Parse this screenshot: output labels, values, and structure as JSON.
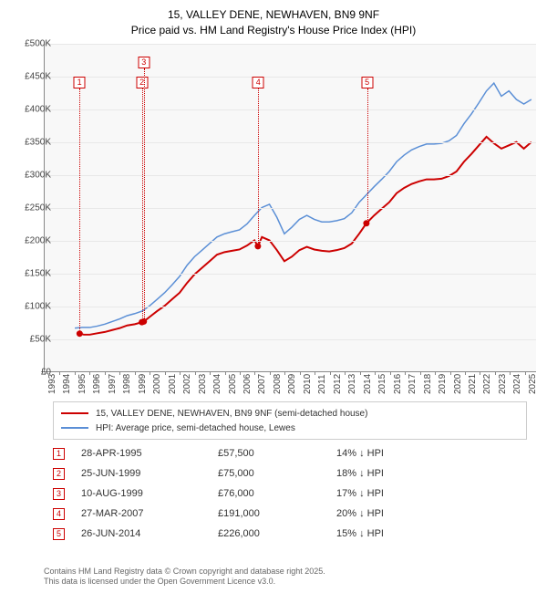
{
  "title": {
    "line1": "15, VALLEY DENE, NEWHAVEN, BN9 9NF",
    "line2": "Price paid vs. HM Land Registry's House Price Index (HPI)"
  },
  "chart": {
    "type": "line",
    "background_color": "#f8f8f8",
    "grid_color": "#e8e8e8",
    "axis_color": "#888888",
    "x_range": [
      1993,
      2025.8
    ],
    "y_range": [
      0,
      500000
    ],
    "y_ticks": [
      0,
      50000,
      100000,
      150000,
      200000,
      250000,
      300000,
      350000,
      400000,
      450000,
      500000
    ],
    "y_tick_labels": [
      "£0",
      "£50K",
      "£100K",
      "£150K",
      "£200K",
      "£250K",
      "£300K",
      "£350K",
      "£400K",
      "£450K",
      "£500K"
    ],
    "x_ticks": [
      1993,
      1994,
      1995,
      1996,
      1997,
      1998,
      1999,
      2000,
      2001,
      2002,
      2003,
      2004,
      2005,
      2006,
      2007,
      2008,
      2009,
      2010,
      2011,
      2012,
      2013,
      2014,
      2015,
      2016,
      2017,
      2018,
      2019,
      2020,
      2021,
      2022,
      2023,
      2024,
      2025
    ],
    "y_label_fontsize": 10,
    "x_label_fontsize": 10,
    "series": [
      {
        "id": "property",
        "label": "15, VALLEY DENE, NEWHAVEN, BN9 9NF (semi-detached house)",
        "color": "#cc0000",
        "line_width": 2,
        "data": [
          [
            1995.32,
            57500
          ],
          [
            1995.6,
            56000
          ],
          [
            1996.0,
            56000
          ],
          [
            1996.5,
            58000
          ],
          [
            1997.0,
            60000
          ],
          [
            1997.5,
            63000
          ],
          [
            1998.0,
            66000
          ],
          [
            1998.5,
            70000
          ],
          [
            1999.0,
            72000
          ],
          [
            1999.48,
            75000
          ],
          [
            1999.61,
            76000
          ],
          [
            2000.0,
            83000
          ],
          [
            2000.5,
            92000
          ],
          [
            2001.0,
            100000
          ],
          [
            2001.5,
            110000
          ],
          [
            2002.0,
            120000
          ],
          [
            2002.5,
            135000
          ],
          [
            2003.0,
            148000
          ],
          [
            2003.5,
            158000
          ],
          [
            2004.0,
            168000
          ],
          [
            2004.5,
            178000
          ],
          [
            2005.0,
            182000
          ],
          [
            2005.5,
            184000
          ],
          [
            2006.0,
            186000
          ],
          [
            2006.5,
            192000
          ],
          [
            2007.0,
            200000
          ],
          [
            2007.23,
            191000
          ],
          [
            2007.5,
            205000
          ],
          [
            2008.0,
            200000
          ],
          [
            2008.5,
            185000
          ],
          [
            2009.0,
            168000
          ],
          [
            2009.5,
            175000
          ],
          [
            2010.0,
            185000
          ],
          [
            2010.5,
            190000
          ],
          [
            2011.0,
            186000
          ],
          [
            2011.5,
            184000
          ],
          [
            2012.0,
            183000
          ],
          [
            2012.5,
            185000
          ],
          [
            2013.0,
            188000
          ],
          [
            2013.5,
            195000
          ],
          [
            2014.0,
            210000
          ],
          [
            2014.48,
            226000
          ],
          [
            2015.0,
            238000
          ],
          [
            2015.5,
            248000
          ],
          [
            2016.0,
            258000
          ],
          [
            2016.5,
            272000
          ],
          [
            2017.0,
            280000
          ],
          [
            2017.5,
            286000
          ],
          [
            2018.0,
            290000
          ],
          [
            2018.5,
            293000
          ],
          [
            2019.0,
            293000
          ],
          [
            2019.5,
            294000
          ],
          [
            2020.0,
            298000
          ],
          [
            2020.5,
            305000
          ],
          [
            2021.0,
            320000
          ],
          [
            2021.5,
            332000
          ],
          [
            2022.0,
            345000
          ],
          [
            2022.5,
            358000
          ],
          [
            2023.0,
            348000
          ],
          [
            2023.5,
            340000
          ],
          [
            2024.0,
            345000
          ],
          [
            2024.5,
            350000
          ],
          [
            2025.0,
            340000
          ],
          [
            2025.5,
            350000
          ]
        ]
      },
      {
        "id": "hpi",
        "label": "HPI: Average price, semi-detached house, Lewes",
        "color": "#5b8fd6",
        "line_width": 1.5,
        "data": [
          [
            1995.0,
            66000
          ],
          [
            1995.5,
            67000
          ],
          [
            1996.0,
            67000
          ],
          [
            1996.5,
            69000
          ],
          [
            1997.0,
            72000
          ],
          [
            1997.5,
            76000
          ],
          [
            1998.0,
            80000
          ],
          [
            1998.5,
            85000
          ],
          [
            1999.0,
            88000
          ],
          [
            1999.5,
            92000
          ],
          [
            2000.0,
            100000
          ],
          [
            2000.5,
            110000
          ],
          [
            2001.0,
            120000
          ],
          [
            2001.5,
            132000
          ],
          [
            2002.0,
            145000
          ],
          [
            2002.5,
            162000
          ],
          [
            2003.0,
            175000
          ],
          [
            2003.5,
            185000
          ],
          [
            2004.0,
            195000
          ],
          [
            2004.5,
            205000
          ],
          [
            2005.0,
            210000
          ],
          [
            2005.5,
            213000
          ],
          [
            2006.0,
            216000
          ],
          [
            2006.5,
            225000
          ],
          [
            2007.0,
            238000
          ],
          [
            2007.5,
            250000
          ],
          [
            2008.0,
            255000
          ],
          [
            2008.5,
            235000
          ],
          [
            2009.0,
            210000
          ],
          [
            2009.5,
            220000
          ],
          [
            2010.0,
            232000
          ],
          [
            2010.5,
            238000
          ],
          [
            2011.0,
            232000
          ],
          [
            2011.5,
            228000
          ],
          [
            2012.0,
            228000
          ],
          [
            2012.5,
            230000
          ],
          [
            2013.0,
            233000
          ],
          [
            2013.5,
            242000
          ],
          [
            2014.0,
            258000
          ],
          [
            2014.5,
            270000
          ],
          [
            2015.0,
            282000
          ],
          [
            2015.5,
            293000
          ],
          [
            2016.0,
            305000
          ],
          [
            2016.5,
            320000
          ],
          [
            2017.0,
            330000
          ],
          [
            2017.5,
            338000
          ],
          [
            2018.0,
            343000
          ],
          [
            2018.5,
            347000
          ],
          [
            2019.0,
            347000
          ],
          [
            2019.5,
            348000
          ],
          [
            2020.0,
            352000
          ],
          [
            2020.5,
            360000
          ],
          [
            2021.0,
            378000
          ],
          [
            2021.5,
            393000
          ],
          [
            2022.0,
            410000
          ],
          [
            2022.5,
            428000
          ],
          [
            2023.0,
            440000
          ],
          [
            2023.5,
            420000
          ],
          [
            2024.0,
            428000
          ],
          [
            2024.5,
            415000
          ],
          [
            2025.0,
            408000
          ],
          [
            2025.5,
            415000
          ]
        ]
      }
    ],
    "sale_points": {
      "color": "#cc0000",
      "radius": 3.5,
      "points": [
        [
          1995.32,
          57500
        ],
        [
          1999.48,
          75000
        ],
        [
          1999.61,
          76000
        ],
        [
          2007.23,
          191000
        ],
        [
          2014.48,
          226000
        ]
      ]
    },
    "markers": [
      {
        "num": "1",
        "x": 1995.32,
        "box_y": 450000
      },
      {
        "num": "2",
        "x": 1999.48,
        "box_y": 450000
      },
      {
        "num": "3",
        "x": 1999.61,
        "box_y": 480000
      },
      {
        "num": "4",
        "x": 2007.23,
        "box_y": 450000
      },
      {
        "num": "5",
        "x": 2014.48,
        "box_y": 450000
      }
    ],
    "marker_color": "#cc0000"
  },
  "legend": {
    "items": [
      {
        "color": "#cc0000",
        "width": 2,
        "label": "15, VALLEY DENE, NEWHAVEN, BN9 9NF (semi-detached house)"
      },
      {
        "color": "#5b8fd6",
        "width": 1.5,
        "label": "HPI: Average price, semi-detached house, Lewes"
      }
    ]
  },
  "transactions": [
    {
      "num": "1",
      "date": "28-APR-1995",
      "price": "£57,500",
      "diff": "14% ↓ HPI"
    },
    {
      "num": "2",
      "date": "25-JUN-1999",
      "price": "£75,000",
      "diff": "18% ↓ HPI"
    },
    {
      "num": "3",
      "date": "10-AUG-1999",
      "price": "£76,000",
      "diff": "17% ↓ HPI"
    },
    {
      "num": "4",
      "date": "27-MAR-2007",
      "price": "£191,000",
      "diff": "20% ↓ HPI"
    },
    {
      "num": "5",
      "date": "26-JUN-2014",
      "price": "£226,000",
      "diff": "15% ↓ HPI"
    }
  ],
  "footer": {
    "line1": "Contains HM Land Registry data © Crown copyright and database right 2025.",
    "line2": "This data is licensed under the Open Government Licence v3.0."
  }
}
